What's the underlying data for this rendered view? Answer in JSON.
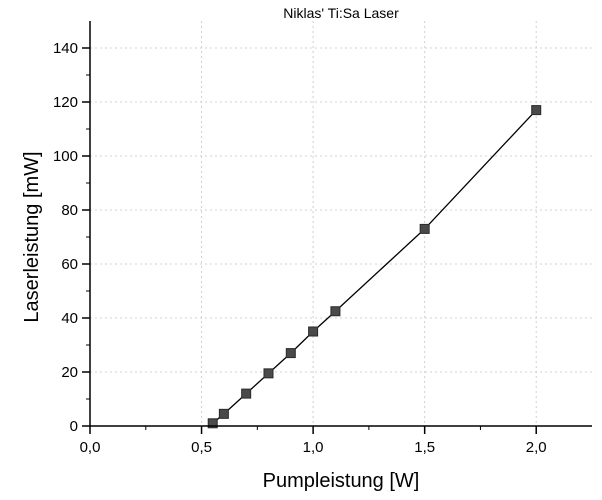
{
  "chart_data": {
    "type": "line",
    "title": "Niklas' Ti:Sa Laser",
    "xlabel": "Pumpleistung [W]",
    "ylabel": "Laserleistung [mW]",
    "xlim": [
      0,
      2.25
    ],
    "ylim": [
      0,
      150
    ],
    "x_ticks": [
      0,
      0.5,
      1.0,
      1.5,
      2.0
    ],
    "x_tick_labels": [
      "0,0",
      "0,5",
      "1,0",
      "1,5",
      "2,0"
    ],
    "y_ticks": [
      0,
      20,
      40,
      60,
      80,
      100,
      120,
      140
    ],
    "y_tick_labels": [
      "0",
      "20",
      "40",
      "60",
      "80",
      "100",
      "120",
      "140"
    ],
    "grid": true,
    "series": [
      {
        "marker": "square",
        "color": "#4a4a4a",
        "line_color": "#000000",
        "x": [
          0.55,
          0.6,
          0.7,
          0.8,
          0.9,
          1.0,
          1.1,
          1.5,
          2.0
        ],
        "y": [
          1,
          4.5,
          12,
          19.5,
          27,
          35,
          42.5,
          73,
          117
        ]
      }
    ]
  }
}
